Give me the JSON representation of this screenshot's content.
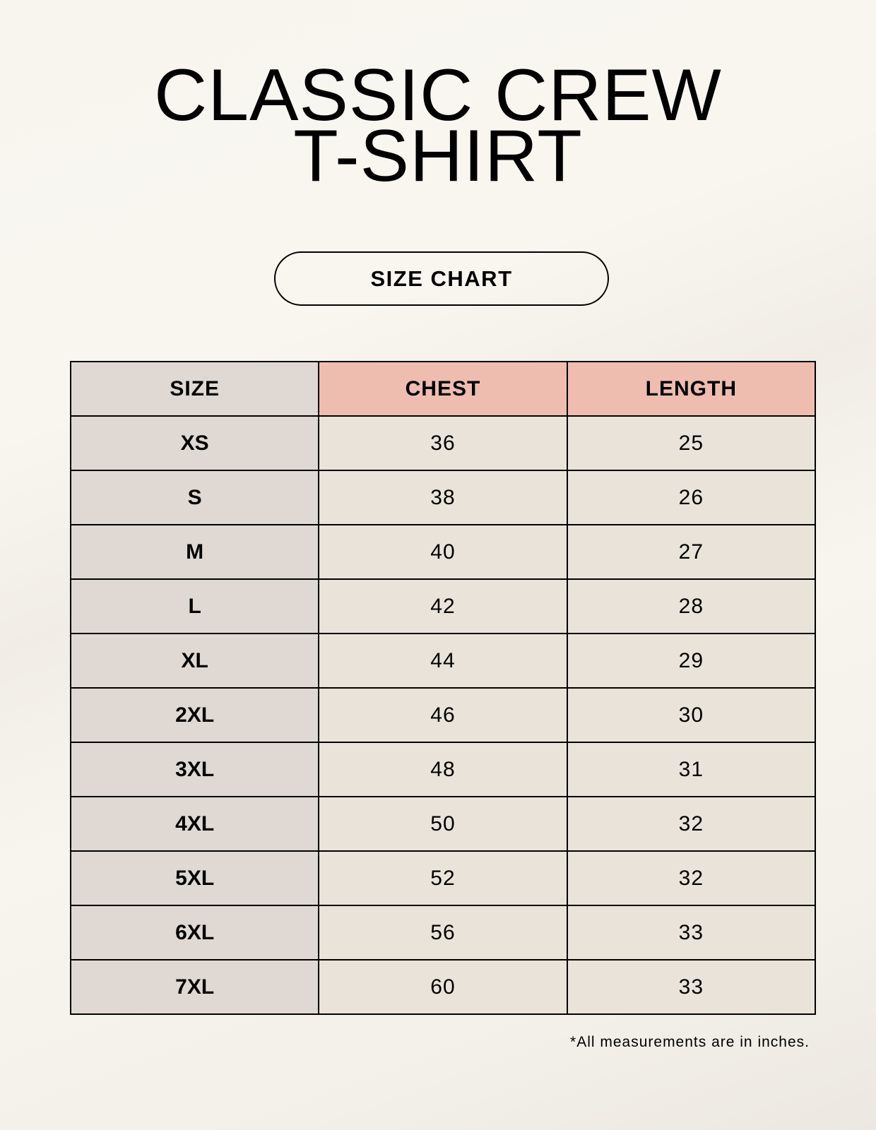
{
  "title_line1": "CLASSIC CREW",
  "title_line2": "T-SHIRT",
  "badge": "SIZE CHART",
  "colors": {
    "size_column": "#e0d9d3",
    "header_highlight": "#eebdaf",
    "value_cells": "#eae3d9"
  },
  "table": {
    "headers": [
      "SIZE",
      "CHEST",
      "LENGTH"
    ],
    "rows": [
      [
        "XS",
        "36",
        "25"
      ],
      [
        "S",
        "38",
        "26"
      ],
      [
        "M",
        "40",
        "27"
      ],
      [
        "L",
        "42",
        "28"
      ],
      [
        "XL",
        "44",
        "29"
      ],
      [
        "2XL",
        "46",
        "30"
      ],
      [
        "3XL",
        "48",
        "31"
      ],
      [
        "4XL",
        "50",
        "32"
      ],
      [
        "5XL",
        "52",
        "32"
      ],
      [
        "6XL",
        "56",
        "33"
      ],
      [
        "7XL",
        "60",
        "33"
      ]
    ]
  },
  "footnote": "*All measurements are in inches."
}
